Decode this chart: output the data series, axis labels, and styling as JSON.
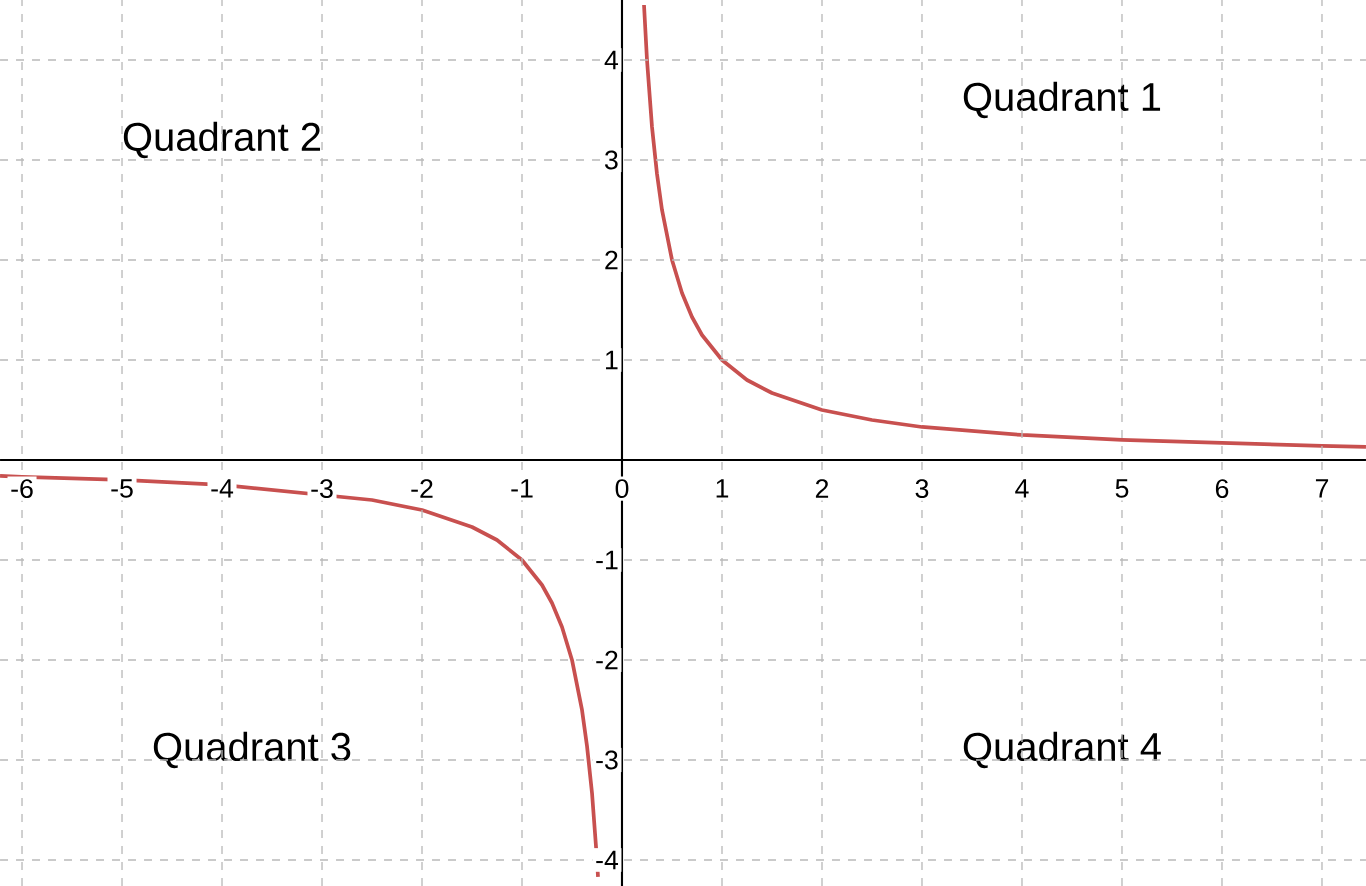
{
  "chart_data": {
    "type": "line",
    "annotations": [
      "Quadrant 1",
      "Quadrant 2",
      "Quadrant 3",
      "Quadrant 4"
    ],
    "x": [
      -6.22,
      -6,
      -5,
      -4,
      -2.5,
      -2,
      -1.5,
      -1.25,
      -1,
      -0.8,
      -0.7,
      -0.6,
      -0.5,
      -0.4,
      -0.35,
      -0.3,
      -0.25,
      -0.24,
      0,
      0.22,
      0.25,
      0.3,
      0.35,
      0.4,
      0.5,
      0.6,
      0.7,
      0.8,
      1,
      1.25,
      1.5,
      2,
      2.5,
      3,
      4,
      5,
      6,
      7,
      7.44
    ],
    "series": [
      {
        "color": "#c8504f",
        "values": [
          -0.16,
          -0.17,
          -0.2,
          -0.25,
          -0.4,
          -0.5,
          -0.67,
          -0.8,
          -1,
          -1.25,
          -1.43,
          -1.67,
          -2,
          -2.5,
          -2.86,
          -3.33,
          -4,
          -4.17,
          null,
          4.55,
          4,
          3.33,
          2.86,
          2.5,
          2,
          1.67,
          1.43,
          1.25,
          1,
          0.8,
          0.67,
          0.5,
          0.4,
          0.33,
          0.25,
          0.2,
          0.17,
          0.14,
          0.13
        ]
      }
    ],
    "xlim": [
      -6.22,
      7.44
    ],
    "ylim": [
      -4.26,
      4.6
    ],
    "xticks": [
      -6,
      -5,
      -4,
      -3,
      -2,
      -1,
      0,
      1,
      2,
      3,
      4,
      5,
      6,
      7
    ],
    "yticks": [
      -4,
      -3,
      -2,
      -1,
      1,
      2,
      3,
      4
    ],
    "grid": true,
    "marker": "none",
    "line_style": "solid"
  }
}
